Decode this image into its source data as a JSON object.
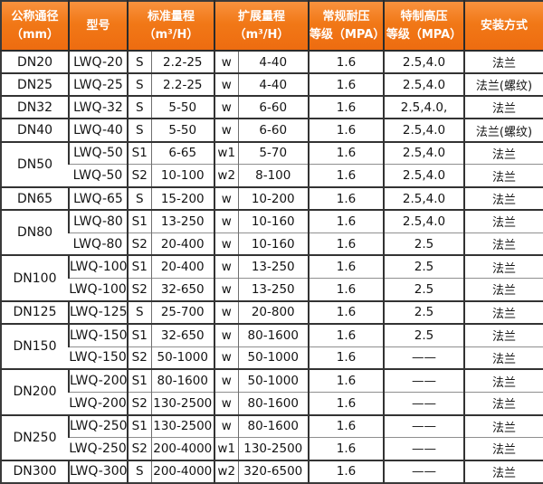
{
  "colors": {
    "header_orange_top": "#f9923e",
    "header_orange_bottom": "#ee6c10",
    "header_text": "#ffffff",
    "grid_dark": "#333333",
    "grid_light": "#8f8f8f",
    "body_text": "#141414"
  },
  "header": {
    "columns": [
      {
        "id": "diameter",
        "line1": "公称通径",
        "line2": "（mm）",
        "span": 1
      },
      {
        "id": "model",
        "line1": "型号",
        "line2": "",
        "span": 1
      },
      {
        "id": "std-range",
        "line1": "标准量程",
        "line2": "（m³/H）",
        "span": 2
      },
      {
        "id": "ext-range",
        "line1": "扩展量程",
        "line2": "（m³/H）",
        "span": 2
      },
      {
        "id": "std-pressure",
        "line1": "常规耐压",
        "line2": "等级（MPA）",
        "span": 1
      },
      {
        "id": "high-pressure",
        "line1": "特制高压",
        "line2": "等级（MPA）",
        "span": 1
      },
      {
        "id": "install",
        "line1": "安装方式",
        "line2": "",
        "span": 1
      }
    ]
  },
  "groups": [
    {
      "dn": "DN20",
      "rows": [
        {
          "model": "LWQ-20",
          "std_code": "S",
          "std_range": "2.2-25",
          "ext_code": "w",
          "ext_range": "4-40",
          "pressure_std": "1.6",
          "pressure_high": "2.5,4.0",
          "install": "法兰"
        }
      ]
    },
    {
      "dn": "DN25",
      "rows": [
        {
          "model": "LWQ-25",
          "std_code": "S",
          "std_range": "2.2-25",
          "ext_code": "w",
          "ext_range": "4-40",
          "pressure_std": "1.6",
          "pressure_high": "2.5,4.0",
          "install": "法兰(螺纹)"
        }
      ]
    },
    {
      "dn": "DN32",
      "rows": [
        {
          "model": "LWQ-32",
          "std_code": "S",
          "std_range": "5-50",
          "ext_code": "w",
          "ext_range": "6-60",
          "pressure_std": "1.6",
          "pressure_high": "2.5,4.0,",
          "install": "法兰"
        }
      ]
    },
    {
      "dn": "DN40",
      "rows": [
        {
          "model": "LWQ-40",
          "std_code": "S",
          "std_range": "5-50",
          "ext_code": "w",
          "ext_range": "6-60",
          "pressure_std": "1.6",
          "pressure_high": "2.5,4.0",
          "install": "法兰(螺纹)"
        }
      ]
    },
    {
      "dn": "DN50",
      "rows": [
        {
          "model": "LWQ-50",
          "std_code": "S1",
          "std_range": "6-65",
          "ext_code": "w1",
          "ext_range": "5-70",
          "pressure_std": "1.6",
          "pressure_high": "2.5,4.0",
          "install": "法兰"
        },
        {
          "model": "LWQ-50",
          "std_code": "S2",
          "std_range": "10-100",
          "ext_code": "w2",
          "ext_range": "8-100",
          "pressure_std": "1.6",
          "pressure_high": "2.5,4.0",
          "install": "法兰"
        }
      ]
    },
    {
      "dn": "DN65",
      "rows": [
        {
          "model": "LWQ-65",
          "std_code": "S",
          "std_range": "15-200",
          "ext_code": "w",
          "ext_range": "10-200",
          "pressure_std": "1.6",
          "pressure_high": "2.5,4.0",
          "install": "法兰"
        }
      ]
    },
    {
      "dn": "DN80",
      "rows": [
        {
          "model": "LWQ-80",
          "std_code": "S1",
          "std_range": "13-250",
          "ext_code": "w",
          "ext_range": "10-160",
          "pressure_std": "1.6",
          "pressure_high": "2.5,4.0",
          "install": "法兰"
        },
        {
          "model": "LWQ-80",
          "std_code": "S2",
          "std_range": "20-400",
          "ext_code": "w",
          "ext_range": "10-160",
          "pressure_std": "1.6",
          "pressure_high": "2.5",
          "install": "法兰"
        }
      ]
    },
    {
      "dn": "DN100",
      "rows": [
        {
          "model": "LWQ-100",
          "std_code": "S1",
          "std_range": "20-400",
          "ext_code": "w",
          "ext_range": "13-250",
          "pressure_std": "1.6",
          "pressure_high": "2.5",
          "install": "法兰"
        },
        {
          "model": "LWQ-100",
          "std_code": "S2",
          "std_range": "32-650",
          "ext_code": "w",
          "ext_range": "13-250",
          "pressure_std": "1.6",
          "pressure_high": "2.5",
          "install": "法兰"
        }
      ]
    },
    {
      "dn": "DN125",
      "rows": [
        {
          "model": "LWQ-125",
          "std_code": "S",
          "std_range": "25-700",
          "ext_code": "w",
          "ext_range": "20-800",
          "pressure_std": "1.6",
          "pressure_high": "2.5",
          "install": "法兰"
        }
      ]
    },
    {
      "dn": "DN150",
      "rows": [
        {
          "model": "LWQ-150",
          "std_code": "S1",
          "std_range": "32-650",
          "ext_code": "w",
          "ext_range": "80-1600",
          "pressure_std": "1.6",
          "pressure_high": "2.5",
          "install": "法兰"
        },
        {
          "model": "LWQ-150",
          "std_code": "S2",
          "std_range": "50-1000",
          "ext_code": "w",
          "ext_range": "50-1000",
          "pressure_std": "1.6",
          "pressure_high": "——",
          "install": "法兰"
        }
      ]
    },
    {
      "dn": "DN200",
      "rows": [
        {
          "model": "LWQ-200",
          "std_code": "S1",
          "std_range": "80-1600",
          "ext_code": "w",
          "ext_range": "50-1000",
          "pressure_std": "1.6",
          "pressure_high": "——",
          "install": "法兰"
        },
        {
          "model": "LWQ-200",
          "std_code": "S2",
          "std_range": "130-2500",
          "ext_code": "w",
          "ext_range": "80-1600",
          "pressure_std": "1.6",
          "pressure_high": "——",
          "install": "法兰"
        }
      ]
    },
    {
      "dn": "DN250",
      "rows": [
        {
          "model": "LWQ-250",
          "std_code": "S1",
          "std_range": "130-2500",
          "ext_code": "w",
          "ext_range": "80-1600",
          "pressure_std": "1.6",
          "pressure_high": "——",
          "install": "法兰"
        },
        {
          "model": "LWQ-250",
          "std_code": "S2",
          "std_range": "200-4000",
          "ext_code": "w1",
          "ext_range": "130-2500",
          "pressure_std": "1.6",
          "pressure_high": "——",
          "install": "法兰"
        }
      ]
    },
    {
      "dn": "DN300",
      "rows": [
        {
          "model": "LWQ-300",
          "std_code": "S",
          "std_range": "200-4000",
          "ext_code": "w2",
          "ext_range": "320-6500",
          "pressure_std": "1.6",
          "pressure_high": "——",
          "install": "法兰"
        }
      ]
    }
  ]
}
